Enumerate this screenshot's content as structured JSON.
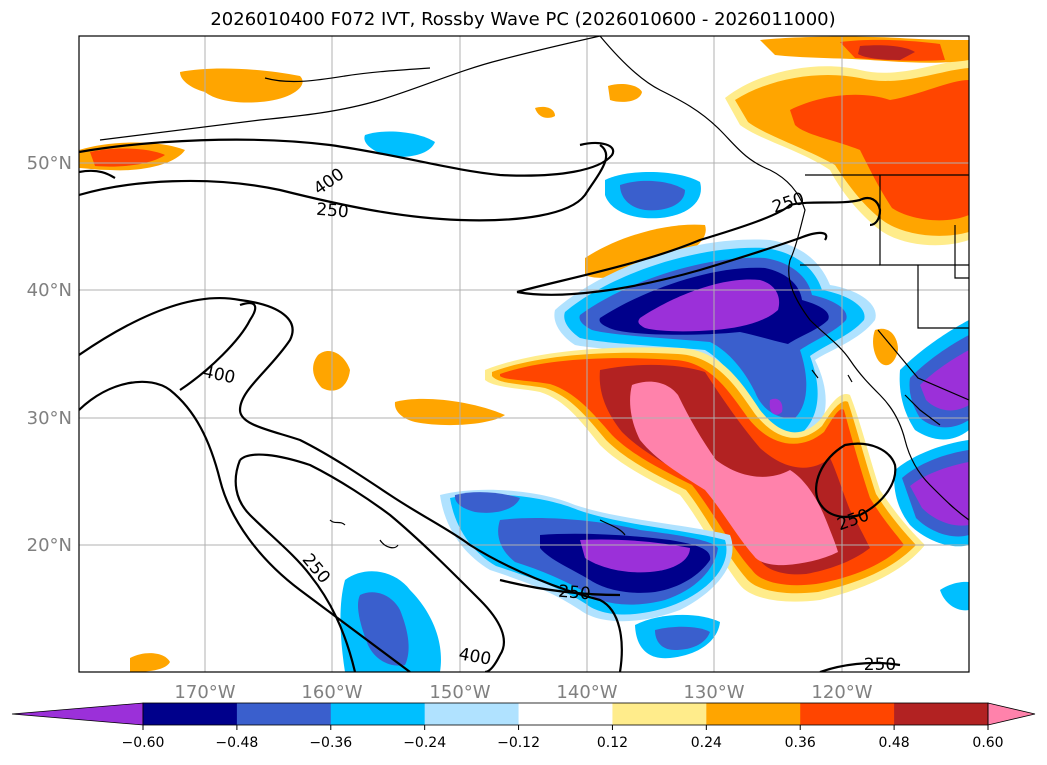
{
  "title": "2026010400 F072 IVT, Rossby Wave PC (2026010600 - 2026011000)",
  "map": {
    "lon_ticks": [
      "170°W",
      "160°W",
      "150°W",
      "140°W",
      "130°W",
      "120°W"
    ],
    "lat_ticks": [
      "50°N",
      "40°N",
      "30°N",
      "20°N"
    ],
    "lon_range": [
      -180,
      -110
    ],
    "lat_range": [
      10,
      60
    ],
    "grid": true,
    "contour_labels": [
      "400",
      "250",
      "250",
      "400",
      "250",
      "250",
      "400",
      "250",
      "250"
    ]
  },
  "colorbar": {
    "ticks": [
      "−0.60",
      "−0.48",
      "−0.36",
      "−0.24",
      "−0.12",
      "0.12",
      "0.24",
      "0.36",
      "0.48",
      "0.60"
    ],
    "colors": [
      "#9b30d9",
      "#00008b",
      "#3a5fcd",
      "#00bfff",
      "#b0e2ff",
      "#ffffff",
      "#ffec8b",
      "#ffa500",
      "#ff4500",
      "#b22222",
      "#ff82ab"
    ],
    "extend": "both"
  }
}
